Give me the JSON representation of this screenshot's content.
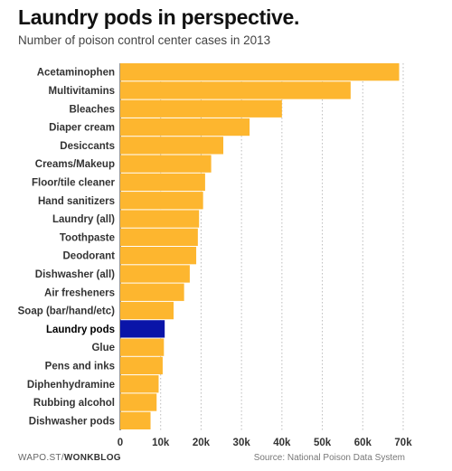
{
  "title": "Laundry pods in perspective.",
  "subtitle": "Number of poison control center cases in 2013",
  "footer": {
    "source_prefix": "WAPO.ST/",
    "source_brand": "WONKBLOG",
    "source": "Source: National Poison Data System"
  },
  "colors": {
    "bar": "#FDB62F",
    "highlight": "#0A14A8",
    "grid": "#bbbbbb",
    "axis": "#333333"
  },
  "chart_data": {
    "type": "bar",
    "orientation": "horizontal",
    "title": "Laundry pods in perspective.",
    "subtitle": "Number of poison control center cases in 2013",
    "xlabel": "",
    "ylabel": "",
    "xlim": [
      0,
      70000
    ],
    "x_ticks": [
      0,
      10000,
      20000,
      30000,
      40000,
      50000,
      60000,
      70000
    ],
    "x_tick_labels": [
      "0",
      "10k",
      "20k",
      "30k",
      "40k",
      "50k",
      "60k",
      "70k"
    ],
    "grid": "vertical dotted",
    "highlight": "Laundry pods",
    "categories": [
      "Acetaminophen",
      "Multivitamins",
      "Bleaches",
      "Diaper cream",
      "Desiccants",
      "Creams/Makeup",
      "Floor/tile cleaner",
      "Hand sanitizers",
      "Laundry (all)",
      "Toothpaste",
      "Deodorant",
      "Dishwasher (all)",
      "Air fresheners",
      "Soap (bar/hand/etc)",
      "Laundry pods",
      "Glue",
      "Pens and inks",
      "Diphenhydramine",
      "Rubbing alcohol",
      "Dishwasher pods"
    ],
    "values": [
      69000,
      57000,
      40000,
      32000,
      25500,
      22500,
      21000,
      20500,
      19500,
      19200,
      18800,
      17200,
      15800,
      13200,
      11000,
      10800,
      10500,
      9500,
      9000,
      7500
    ]
  }
}
